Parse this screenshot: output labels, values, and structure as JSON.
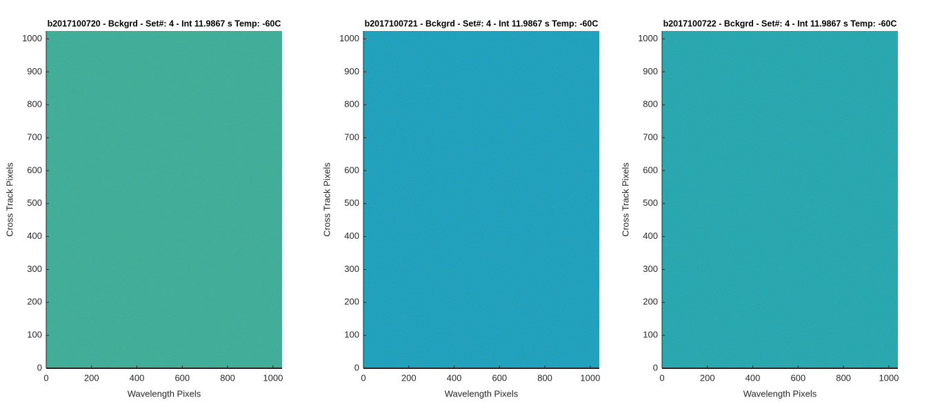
{
  "chart_data": [
    {
      "type": "image",
      "title": "b2017100720 - Bckgrd - Set#: 4 - Int 11.9867 s Temp: -60C",
      "xlabel": "Wavelength Pixels",
      "ylabel": "Cross Track Pixels",
      "color": "#3aaa9a",
      "xlim": [
        0,
        1040
      ],
      "ylim": [
        0,
        1024
      ],
      "xticks": [
        0,
        200,
        400,
        600,
        800,
        1000
      ],
      "yticks": [
        0,
        100,
        200,
        300,
        400,
        500,
        600,
        700,
        800,
        900,
        1000
      ]
    },
    {
      "type": "image",
      "title": "b2017100721 - Bckgrd - Set#: 4 - Int 11.9867 s Temp: -60C",
      "xlabel": "Wavelength Pixels",
      "ylabel": "Cross Track Pixels",
      "color": "#189dc0",
      "xlim": [
        0,
        1040
      ],
      "ylim": [
        0,
        1024
      ],
      "xticks": [
        0,
        200,
        400,
        600,
        800,
        1000
      ],
      "yticks": [
        0,
        100,
        200,
        300,
        400,
        500,
        600,
        700,
        800,
        900,
        1000
      ]
    },
    {
      "type": "image",
      "title": "b2017100722 - Bckgrd - Set#: 4 - Int 11.9867 s Temp: -60C",
      "xlabel": "Wavelength Pixels",
      "ylabel": "Cross Track Pixels",
      "color": "#20a4b2",
      "xlim": [
        0,
        1040
      ],
      "ylim": [
        0,
        1024
      ],
      "xticks": [
        0,
        200,
        400,
        600,
        800,
        1000
      ],
      "yticks": [
        0,
        100,
        200,
        300,
        400,
        500,
        600,
        700,
        800,
        900,
        1000
      ]
    }
  ]
}
